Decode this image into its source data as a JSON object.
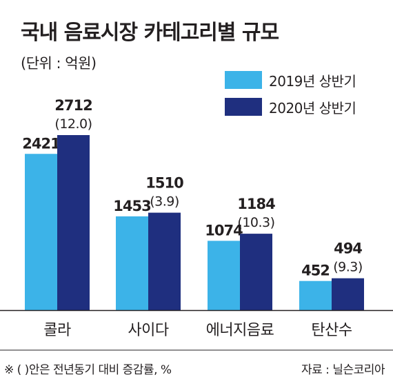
{
  "title": "국내 음료시장 카테고리별 규모",
  "unit": "(단위 : 억원)",
  "legend": [
    {
      "label": "2019년 상반기",
      "color": "#3cb3e8"
    },
    {
      "label": "2020년 상반기",
      "color": "#1f2f7f"
    }
  ],
  "footer": {
    "note": "※ ( )안은 전년동기 대비 증감률, %",
    "source": "자료 : 닐슨코리아"
  },
  "chart_data": {
    "type": "bar",
    "categories": [
      "콜라",
      "사이다",
      "에너지음료",
      "탄산수"
    ],
    "series": [
      {
        "name": "2019년 상반기",
        "color": "#3cb3e8",
        "values": [
          2421,
          1453,
          1074,
          452
        ]
      },
      {
        "name": "2020년 상반기",
        "color": "#1f2f7f",
        "values": [
          2712,
          1510,
          1184,
          494
        ],
        "change_labels": [
          "(12.0)",
          "(3.9)",
          "(10.3)",
          "(9.3)"
        ]
      }
    ],
    "title": "국내 음료시장 카테고리별 규모",
    "ylabel": "(단위 : 억원)",
    "ylim": [
      0,
      2712
    ],
    "grid": false,
    "legend_position": "top-right"
  }
}
